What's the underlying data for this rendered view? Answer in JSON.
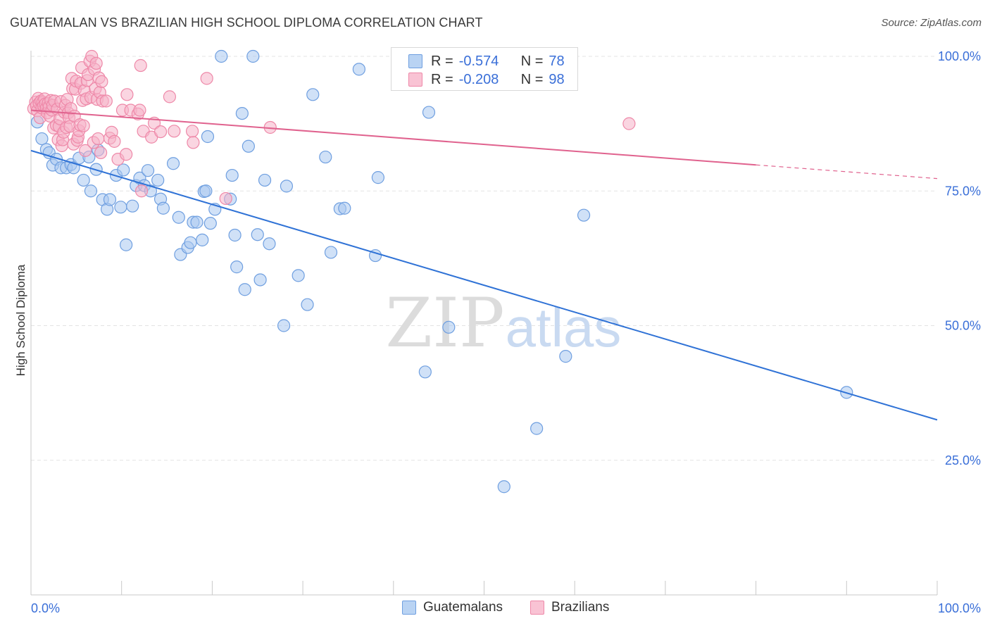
{
  "title": "GUATEMALAN VS BRAZILIAN HIGH SCHOOL DIPLOMA CORRELATION CHART",
  "source": "Source: ZipAtlas.com",
  "watermark": {
    "zip": "ZIP",
    "atlas": "atlas"
  },
  "legend_top": [
    {
      "r_label": "R =",
      "r_value": "-0.574",
      "n_label": "N =",
      "n_value": "78"
    },
    {
      "r_label": "R =",
      "r_value": "-0.208",
      "n_label": "N =",
      "n_value": "98"
    }
  ],
  "legend_bottom": [
    {
      "label": "Guatemalans"
    },
    {
      "label": "Brazilians"
    }
  ],
  "colors": {
    "blue_fill": "#a9c8f0",
    "blue_stroke": "#6f9fe0",
    "blue_line": "#2f72d6",
    "pink_fill": "#f6b3c8",
    "pink_stroke": "#ee88a8",
    "pink_line": "#e0628e",
    "grid": "#e3e3e3",
    "axis_text": "#3a6fd8"
  },
  "chart_data": {
    "type": "scatter",
    "title": "GUATEMALAN VS BRAZILIAN HIGH SCHOOL DIPLOMA CORRELATION CHART",
    "xlabel": "",
    "ylabel": "High School Diploma",
    "xlim": [
      0,
      100
    ],
    "ylim": [
      0,
      105
    ],
    "x_tick_labels": [
      "0.0%",
      "100.0%"
    ],
    "y_ticks": [
      25,
      50,
      75,
      100
    ],
    "y_tick_labels": [
      "25.0%",
      "50.0%",
      "75.0%",
      "100.0%"
    ],
    "grid": true,
    "legend_position": "top-center",
    "series": [
      {
        "name": "Guatemalans",
        "color": "#a9c8f0",
        "trend": {
          "x0": 0,
          "y0": 82.5,
          "x1": 100,
          "y1": 32.5,
          "solid_to": 100
        },
        "points": [
          [
            0.7,
            87.8
          ],
          [
            1.2,
            84.7
          ],
          [
            1.7,
            82.7
          ],
          [
            2.0,
            82.1
          ],
          [
            2.4,
            79.8
          ],
          [
            2.8,
            80.9
          ],
          [
            3.3,
            79.3
          ],
          [
            3.9,
            79.3
          ],
          [
            4.4,
            79.9
          ],
          [
            4.7,
            79.3
          ],
          [
            5.3,
            81.1
          ],
          [
            5.8,
            77.0
          ],
          [
            6.4,
            81.3
          ],
          [
            6.6,
            75.0
          ],
          [
            7.2,
            79.0
          ],
          [
            7.4,
            82.6
          ],
          [
            7.9,
            73.4
          ],
          [
            8.4,
            71.6
          ],
          [
            8.7,
            73.4
          ],
          [
            9.4,
            77.9
          ],
          [
            9.9,
            72.0
          ],
          [
            10.2,
            78.9
          ],
          [
            10.5,
            65.0
          ],
          [
            11.2,
            72.2
          ],
          [
            11.6,
            76.0
          ],
          [
            12.0,
            77.4
          ],
          [
            12.5,
            76.0
          ],
          [
            12.9,
            78.8
          ],
          [
            13.2,
            75.0
          ],
          [
            14.0,
            77.0
          ],
          [
            14.3,
            73.5
          ],
          [
            14.6,
            71.8
          ],
          [
            15.7,
            80.1
          ],
          [
            16.3,
            70.1
          ],
          [
            16.5,
            63.2
          ],
          [
            17.3,
            64.5
          ],
          [
            17.6,
            65.4
          ],
          [
            17.9,
            69.2
          ],
          [
            18.3,
            69.2
          ],
          [
            18.9,
            65.9
          ],
          [
            19.1,
            74.9
          ],
          [
            19.3,
            75.0
          ],
          [
            19.5,
            85.1
          ],
          [
            19.8,
            69.0
          ],
          [
            20.3,
            71.6
          ],
          [
            21.0,
            100.0
          ],
          [
            22.0,
            73.5
          ],
          [
            22.2,
            77.9
          ],
          [
            22.5,
            66.8
          ],
          [
            22.7,
            60.9
          ],
          [
            23.3,
            89.4
          ],
          [
            23.6,
            56.7
          ],
          [
            24.0,
            83.3
          ],
          [
            24.5,
            100.0
          ],
          [
            25.0,
            66.9
          ],
          [
            25.3,
            58.5
          ],
          [
            25.8,
            77.0
          ],
          [
            26.3,
            65.2
          ],
          [
            27.9,
            50.0
          ],
          [
            28.2,
            75.9
          ],
          [
            29.5,
            59.3
          ],
          [
            30.5,
            53.9
          ],
          [
            31.1,
            92.9
          ],
          [
            32.5,
            81.3
          ],
          [
            33.1,
            63.6
          ],
          [
            34.1,
            71.7
          ],
          [
            34.6,
            71.8
          ],
          [
            36.2,
            97.6
          ],
          [
            38.0,
            63.0
          ],
          [
            38.3,
            77.5
          ],
          [
            43.5,
            41.4
          ],
          [
            43.9,
            89.6
          ],
          [
            46.1,
            49.7
          ],
          [
            52.2,
            20.1
          ],
          [
            55.8,
            30.9
          ],
          [
            59.0,
            44.3
          ],
          [
            61.0,
            70.5
          ],
          [
            90.0,
            37.6
          ]
        ]
      },
      {
        "name": "Brazilians",
        "color": "#f6b3c8",
        "trend": {
          "x0": 0,
          "y0": 90.0,
          "x1": 100,
          "y1": 77.3,
          "solid_to": 80
        },
        "points": [
          [
            0.3,
            90.3
          ],
          [
            0.5,
            91.5
          ],
          [
            0.6,
            90.8
          ],
          [
            0.7,
            89.9
          ],
          [
            0.8,
            92.2
          ],
          [
            0.9,
            91.3
          ],
          [
            1.0,
            88.6
          ],
          [
            1.1,
            91.7
          ],
          [
            1.2,
            90.4
          ],
          [
            1.3,
            91.5
          ],
          [
            1.4,
            90.8
          ],
          [
            1.5,
            92.1
          ],
          [
            1.6,
            91.2
          ],
          [
            1.7,
            90.4
          ],
          [
            1.8,
            89.5
          ],
          [
            1.9,
            91.3
          ],
          [
            2.0,
            90.6
          ],
          [
            2.1,
            88.9
          ],
          [
            2.2,
            91.8
          ],
          [
            2.3,
            90.0
          ],
          [
            2.4,
            90.9
          ],
          [
            2.5,
            86.7
          ],
          [
            2.6,
            91.7
          ],
          [
            2.8,
            87.2
          ],
          [
            2.9,
            90.2
          ],
          [
            3.0,
            84.5
          ],
          [
            3.1,
            87.0
          ],
          [
            3.2,
            88.4
          ],
          [
            3.3,
            91.6
          ],
          [
            3.4,
            83.4
          ],
          [
            3.5,
            84.5
          ],
          [
            3.6,
            85.9
          ],
          [
            3.7,
            89.6
          ],
          [
            3.8,
            90.9
          ],
          [
            3.9,
            86.8
          ],
          [
            4.0,
            92.0
          ],
          [
            4.1,
            89.5
          ],
          [
            4.2,
            88.6
          ],
          [
            4.3,
            87.0
          ],
          [
            4.4,
            90.3
          ],
          [
            4.5,
            95.9
          ],
          [
            4.6,
            94.0
          ],
          [
            4.7,
            83.7
          ],
          [
            4.8,
            88.9
          ],
          [
            4.9,
            93.9
          ],
          [
            5.0,
            95.4
          ],
          [
            5.1,
            84.4
          ],
          [
            5.2,
            85.0
          ],
          [
            5.3,
            86.2
          ],
          [
            5.4,
            87.3
          ],
          [
            5.5,
            95.0
          ],
          [
            5.6,
            97.9
          ],
          [
            5.7,
            91.8
          ],
          [
            5.8,
            87.1
          ],
          [
            5.9,
            93.6
          ],
          [
            6.0,
            82.5
          ],
          [
            6.1,
            92.1
          ],
          [
            6.2,
            95.5
          ],
          [
            6.3,
            96.6
          ],
          [
            6.5,
            99.1
          ],
          [
            6.6,
            92.4
          ],
          [
            6.7,
            100.0
          ],
          [
            6.9,
            84.0
          ],
          [
            7.0,
            97.6
          ],
          [
            7.1,
            94.0
          ],
          [
            7.2,
            98.7
          ],
          [
            7.3,
            92.0
          ],
          [
            7.4,
            84.7
          ],
          [
            7.5,
            96.0
          ],
          [
            7.6,
            93.3
          ],
          [
            7.7,
            82.1
          ],
          [
            7.8,
            95.3
          ],
          [
            7.9,
            91.7
          ],
          [
            8.3,
            91.7
          ],
          [
            8.7,
            84.8
          ],
          [
            8.9,
            85.9
          ],
          [
            9.2,
            84.2
          ],
          [
            9.6,
            80.9
          ],
          [
            10.1,
            90.0
          ],
          [
            10.5,
            81.8
          ],
          [
            10.6,
            92.9
          ],
          [
            11.0,
            90.0
          ],
          [
            11.8,
            89.3
          ],
          [
            12.0,
            90.0
          ],
          [
            12.1,
            98.3
          ],
          [
            12.2,
            75.0
          ],
          [
            12.4,
            86.1
          ],
          [
            13.3,
            85.0
          ],
          [
            13.6,
            87.6
          ],
          [
            14.3,
            86.0
          ],
          [
            15.3,
            92.5
          ],
          [
            15.8,
            86.1
          ],
          [
            17.8,
            86.1
          ],
          [
            17.9,
            84.0
          ],
          [
            19.4,
            95.9
          ],
          [
            21.5,
            73.6
          ],
          [
            26.4,
            86.8
          ],
          [
            66.0,
            87.5
          ]
        ]
      }
    ]
  }
}
